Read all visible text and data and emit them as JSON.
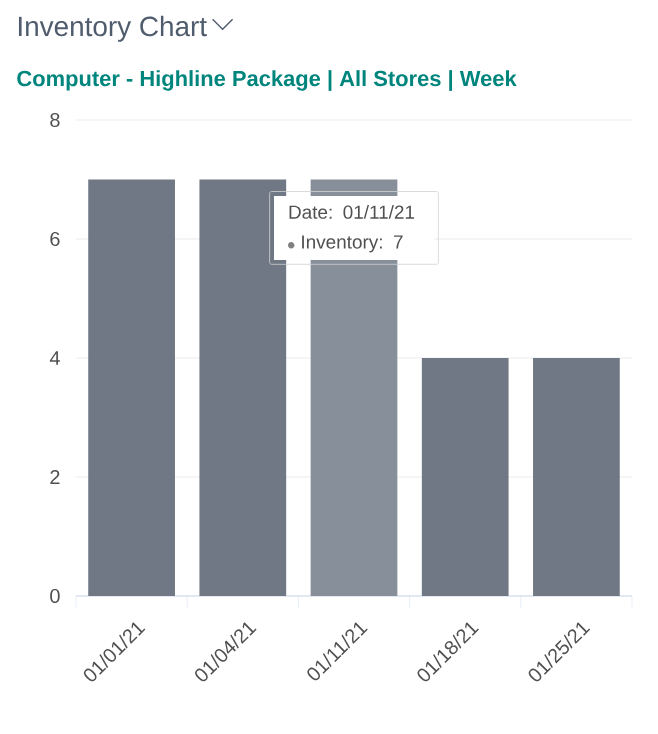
{
  "chart_data": {
    "type": "bar",
    "title": "Inventory Chart",
    "subtitle": "Computer - Highline Package | All Stores | Week",
    "categories": [
      "01/01/21",
      "01/04/21",
      "01/11/21",
      "01/18/21",
      "01/25/21"
    ],
    "values": [
      7,
      7,
      7,
      4,
      4
    ],
    "colors": [
      "#6f7884",
      "#6f7884",
      "#868f9a",
      "#6f7884",
      "#6f7884"
    ],
    "ylim": [
      0,
      8
    ],
    "yticks": [
      0,
      2,
      4,
      6,
      8
    ],
    "grid": "y",
    "annotations": [
      {
        "text": "Date: 01/11/21",
        "x": "01/11/21",
        "y": 7
      },
      {
        "text": "Inventory: 7",
        "x": "01/11/21",
        "y": 7
      }
    ]
  }
}
